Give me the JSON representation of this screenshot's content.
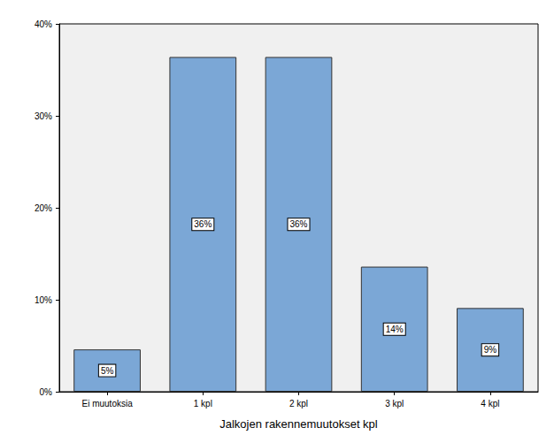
{
  "chart_data": {
    "type": "bar",
    "x_label": "Jalkojen rakennemuutokset kpl",
    "categories": [
      "Ei muutoksia",
      "1 kpl",
      "2 kpl",
      "3 kpl",
      "4 kpl"
    ],
    "values": [
      4.6,
      36.4,
      36.4,
      13.6,
      9.1
    ],
    "value_labels": [
      "5%",
      "36%",
      "36%",
      "14%",
      "9%"
    ],
    "color": "#7ba7d6",
    "ylim": [
      0,
      40
    ],
    "yticks": [
      {
        "value": 0,
        "label": "0%"
      },
      {
        "value": 10,
        "label": "10%"
      },
      {
        "value": 20,
        "label": "20%"
      },
      {
        "value": 30,
        "label": "30%"
      },
      {
        "value": 40,
        "label": "40%"
      }
    ],
    "grid": false,
    "data_labels": true
  }
}
